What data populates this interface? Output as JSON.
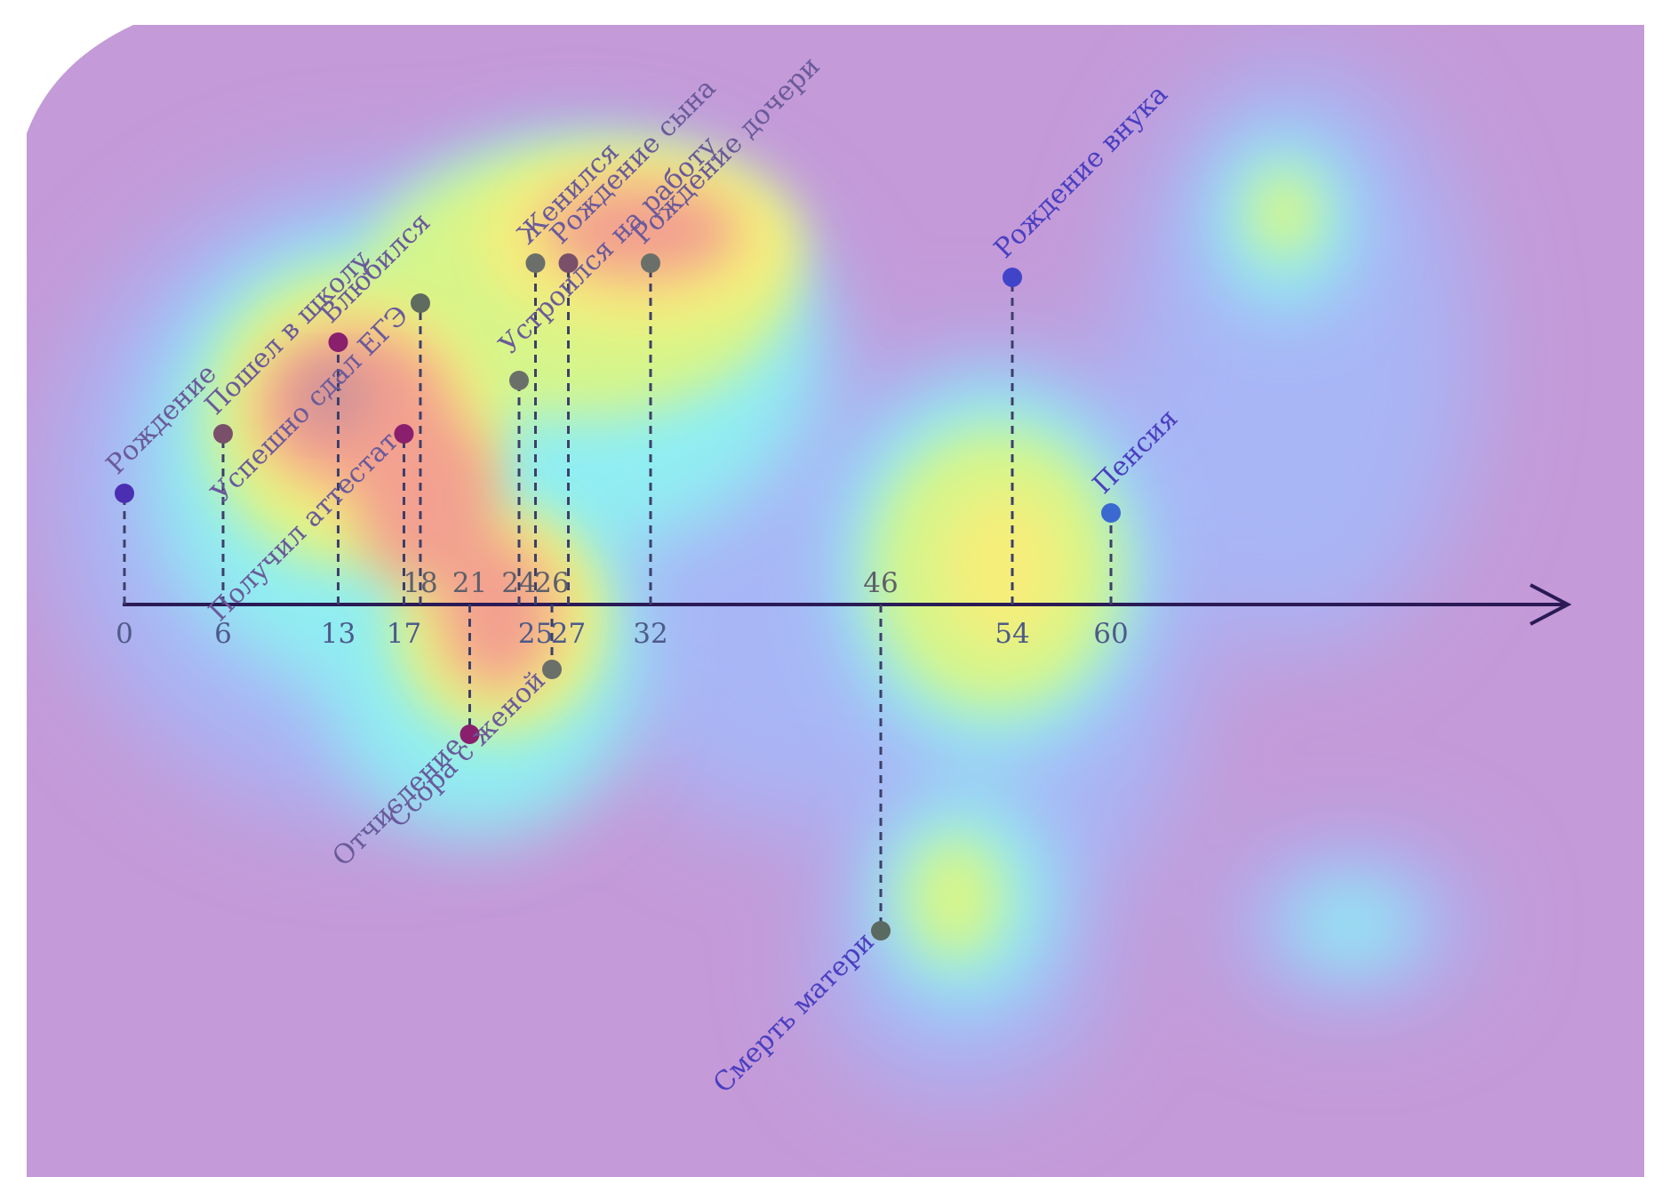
{
  "chart_data": {
    "type": "timeline",
    "title": "",
    "axis": {
      "min": 0,
      "max": 60,
      "ticks_below": [
        "0",
        "6",
        "13",
        "17",
        "25",
        "27",
        "32",
        "54",
        "60"
      ],
      "ticks_above": [
        "18",
        "21",
        "24",
        "26",
        "46"
      ]
    },
    "events": [
      {
        "age": 0,
        "label": "Рождение",
        "side": "up",
        "level": 2,
        "color": "#4b2fb3"
      },
      {
        "age": 6,
        "label": "Пошел в школу",
        "side": "up",
        "level": 3,
        "color": "#7a4f6a"
      },
      {
        "age": 13,
        "label": "Влюбился",
        "side": "up",
        "level": 5,
        "color": "#8a1f6e"
      },
      {
        "age": 17,
        "label": "Получил аттестат",
        "side": "up",
        "level": 3,
        "color": "#8a1f6e"
      },
      {
        "age": 18,
        "label": "Успешно сдал ЕГЭ",
        "side": "up",
        "level": 6,
        "color": "#5f6b5f"
      },
      {
        "age": 21,
        "label": "Отчисление",
        "side": "down",
        "level": 3,
        "color": "#8a1f6e"
      },
      {
        "age": 24,
        "label": "Устроился на работу",
        "side": "up",
        "level": 4,
        "color": "#6b6f6a"
      },
      {
        "age": 25,
        "label": "Женился",
        "side": "up",
        "level": 7,
        "color": "#6b6f6a"
      },
      {
        "age": 26,
        "label": "Ссора с женой",
        "side": "down",
        "level": 1,
        "color": "#6b6f6a"
      },
      {
        "age": 27,
        "label": "Рождение сына",
        "side": "up",
        "level": 7,
        "color": "#7a4f6a"
      },
      {
        "age": 32,
        "label": "Рождение дочери",
        "side": "up",
        "level": 7,
        "color": "#6b6f6a"
      },
      {
        "age": 46,
        "label": "Смерть матери",
        "side": "down",
        "level": 7,
        "color": "#5a6a60"
      },
      {
        "age": 54,
        "label": "Рождение внука",
        "side": "up",
        "level": 7,
        "color": "#3f44c8"
      },
      {
        "age": 60,
        "label": "Пенсия",
        "side": "up",
        "level": 2,
        "color": "#3a6ad0"
      }
    ],
    "heatmap": {
      "colormap": [
        "#c49ad8",
        "#a9b4f5",
        "#8ef0f0",
        "#d7f58c",
        "#f7f07a",
        "#f5a592",
        "#c2909a"
      ]
    }
  }
}
